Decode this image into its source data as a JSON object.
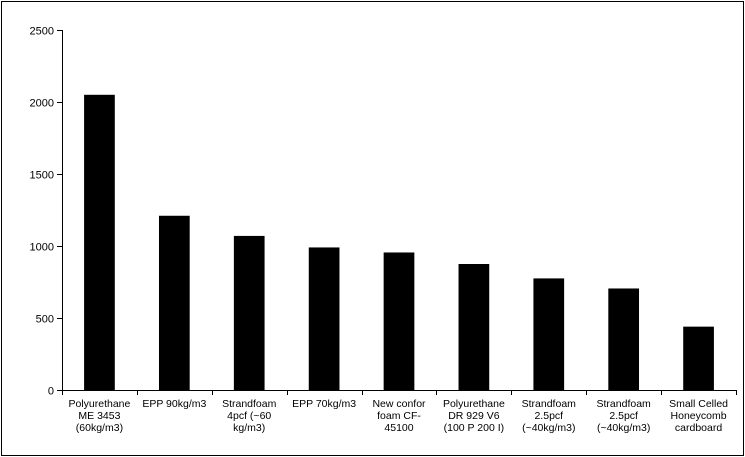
{
  "chart_data": {
    "type": "bar",
    "title": "",
    "xlabel": "",
    "ylabel": "",
    "ylim": [
      0,
      2500
    ],
    "yticks": [
      0,
      500,
      1000,
      1500,
      2000,
      2500
    ],
    "grid": false,
    "legend": "none",
    "bar_color": "#000000",
    "categories": [
      [
        "Polyurethane",
        "ME 3453",
        "(60kg/m3)"
      ],
      [
        "EPP 90kg/m3"
      ],
      [
        "Strandfoam",
        "4pcf (~60",
        "kg/m3)"
      ],
      [
        "EPP 70kg/m3"
      ],
      [
        "New confor",
        "foam CF-",
        "45100"
      ],
      [
        "Polyurethane",
        "DR 929 V6",
        "(100 P 200 I)"
      ],
      [
        "Strandfoam",
        "2.5pcf",
        "(~40kg/m3)"
      ],
      [
        "Strandfoam",
        "2.5pcf",
        "(~40kg/m3)"
      ],
      [
        "Small Celled",
        "Honeycomb",
        "cardboard"
      ]
    ],
    "values": [
      2050,
      1210,
      1070,
      990,
      955,
      875,
      775,
      705,
      440
    ]
  }
}
